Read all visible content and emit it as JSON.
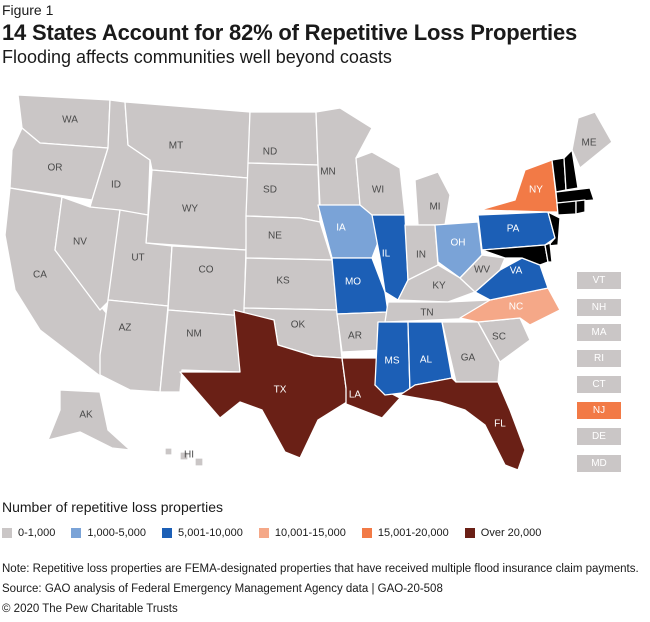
{
  "header": {
    "figure_label": "Figure 1",
    "title": "14 States Account for 82% of Repetitive Loss Properties",
    "subtitle": "Flooding affects communities well beyond coasts"
  },
  "colors": {
    "c0": "#cac6c6",
    "c1": "#7aa3d7",
    "c2": "#1c5fb6",
    "c3": "#f5a888",
    "c4": "#f27a46",
    "c5": "#6a2016"
  },
  "states": {
    "WA": {
      "label": "WA",
      "tier": "c0"
    },
    "OR": {
      "label": "OR",
      "tier": "c0"
    },
    "CA": {
      "label": "CA",
      "tier": "c0"
    },
    "ID": {
      "label": "ID",
      "tier": "c0"
    },
    "NV": {
      "label": "NV",
      "tier": "c0"
    },
    "MT": {
      "label": "MT",
      "tier": "c0"
    },
    "WY": {
      "label": "WY",
      "tier": "c0"
    },
    "UT": {
      "label": "UT",
      "tier": "c0"
    },
    "AZ": {
      "label": "AZ",
      "tier": "c0"
    },
    "CO": {
      "label": "CO",
      "tier": "c0"
    },
    "NM": {
      "label": "NM",
      "tier": "c0"
    },
    "ND": {
      "label": "ND",
      "tier": "c0"
    },
    "SD": {
      "label": "SD",
      "tier": "c0"
    },
    "NE": {
      "label": "NE",
      "tier": "c0"
    },
    "KS": {
      "label": "KS",
      "tier": "c0"
    },
    "OK": {
      "label": "OK",
      "tier": "c0"
    },
    "TX": {
      "label": "TX",
      "tier": "c5"
    },
    "MN": {
      "label": "MN",
      "tier": "c0"
    },
    "IA": {
      "label": "IA",
      "tier": "c1"
    },
    "MO": {
      "label": "MO",
      "tier": "c2"
    },
    "AR": {
      "label": "AR",
      "tier": "c0"
    },
    "LA": {
      "label": "LA",
      "tier": "c5"
    },
    "WI": {
      "label": "WI",
      "tier": "c0"
    },
    "IL": {
      "label": "IL",
      "tier": "c2"
    },
    "MI": {
      "label": "MI",
      "tier": "c0"
    },
    "IN": {
      "label": "IN",
      "tier": "c0"
    },
    "OH": {
      "label": "OH",
      "tier": "c1"
    },
    "KY": {
      "label": "KY",
      "tier": "c0"
    },
    "TN": {
      "label": "TN",
      "tier": "c0"
    },
    "MS": {
      "label": "MS",
      "tier": "c2"
    },
    "AL": {
      "label": "AL",
      "tier": "c2"
    },
    "GA": {
      "label": "GA",
      "tier": "c0"
    },
    "FL": {
      "label": "FL",
      "tier": "c5"
    },
    "SC": {
      "label": "SC",
      "tier": "c0"
    },
    "NC": {
      "label": "NC",
      "tier": "c3"
    },
    "VA": {
      "label": "VA",
      "tier": "c2"
    },
    "WV": {
      "label": "WV",
      "tier": "c0"
    },
    "PA": {
      "label": "PA",
      "tier": "c2"
    },
    "NY": {
      "label": "NY",
      "tier": "c4"
    },
    "ME": {
      "label": "ME",
      "tier": "c0"
    },
    "AK": {
      "label": "AK",
      "tier": "c0"
    },
    "HI": {
      "label": "HI",
      "tier": "c0"
    }
  },
  "northeast_boxes": [
    {
      "label": "VT",
      "tier": "c0"
    },
    {
      "label": "NH",
      "tier": "c0"
    },
    {
      "label": "MA",
      "tier": "c0"
    },
    {
      "label": "RI",
      "tier": "c0"
    },
    {
      "label": "CT",
      "tier": "c0"
    },
    {
      "label": "NJ",
      "tier": "c4"
    },
    {
      "label": "DE",
      "tier": "c0"
    },
    {
      "label": "MD",
      "tier": "c0"
    }
  ],
  "legend": {
    "title": "Number of repetitive loss properties",
    "items": [
      {
        "label": "0-1,000",
        "tier": "c0"
      },
      {
        "label": "1,000-5,000",
        "tier": "c1"
      },
      {
        "label": "5,001-10,000",
        "tier": "c2"
      },
      {
        "label": "10,001-15,000",
        "tier": "c3"
      },
      {
        "label": "15,001-20,000",
        "tier": "c4"
      },
      {
        "label": "Over 20,000",
        "tier": "c5"
      }
    ]
  },
  "footer": {
    "note": "Note: Repetitive loss properties are FEMA-designated properties that have received multiple flood insurance claim payments.",
    "source": "Source: GAO analysis of Federal Emergency Management Agency data | GAO-20-508",
    "copyright": "© 2020 The Pew Charitable Trusts"
  }
}
